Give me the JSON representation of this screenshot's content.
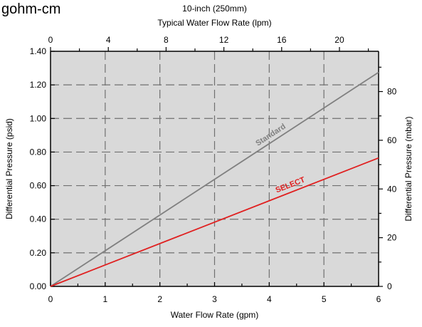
{
  "corner_text": "gohm-cm",
  "chart_data": {
    "type": "line",
    "title": "10-inch (250mm)",
    "xlabel": "Water Flow Rate (gpm)",
    "ylabel": "Differential Pressure (psid)",
    "x2label": "Typical Water Flow Rate (lpm)",
    "y2label": "Differential Pressure (mbar)",
    "xlim": [
      0,
      6
    ],
    "ylim": [
      0,
      1.4
    ],
    "x2lim": [
      0,
      22.71
    ],
    "y2lim": [
      0,
      96.53
    ],
    "x_ticks": [
      "0",
      "1",
      "2",
      "3",
      "4",
      "5",
      "6"
    ],
    "y_ticks": [
      "0.00",
      "0.20",
      "0.40",
      "0.60",
      "0.80",
      "1.00",
      "1.20",
      "1.40"
    ],
    "x2_ticks": [
      "0",
      "4",
      "8",
      "12",
      "16",
      "20"
    ],
    "y2_ticks": [
      "0",
      "20",
      "40",
      "60",
      "80"
    ],
    "grid": true,
    "background_color": "#d9d9d9",
    "series": [
      {
        "name": "Standard",
        "x": [
          0,
          6
        ],
        "y": [
          0,
          1.275
        ],
        "color": "#808080"
      },
      {
        "name": "SELECT",
        "x": [
          0,
          6
        ],
        "y": [
          0,
          0.765
        ],
        "color": "#e02020"
      }
    ]
  }
}
